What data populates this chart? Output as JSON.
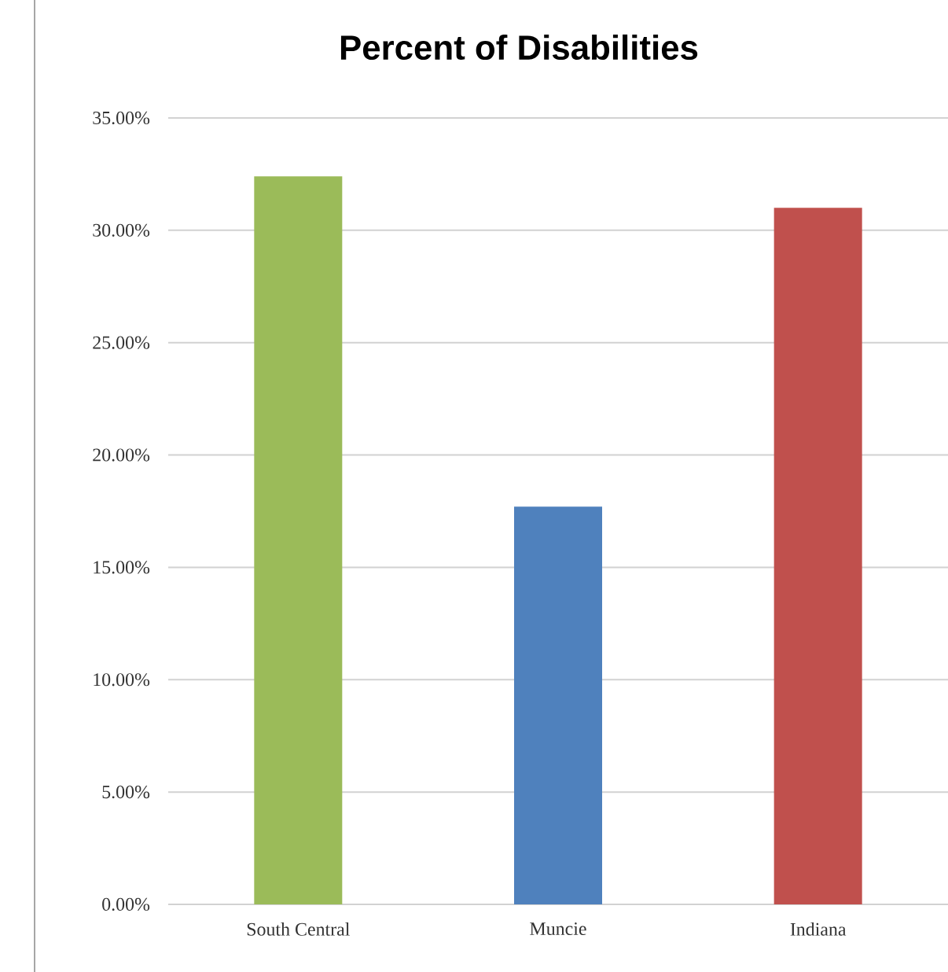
{
  "chart_data": {
    "type": "bar",
    "title": "Percent of Disabilities",
    "categories": [
      "South Central",
      "Muncie",
      "Indiana"
    ],
    "values": [
      32.4,
      17.7,
      31.0
    ],
    "colors": [
      "#9bbb59",
      "#4f81bd",
      "#c0504d"
    ],
    "ylim": [
      0,
      35
    ],
    "yticks": [
      {
        "value": 0,
        "label": "0.00%"
      },
      {
        "value": 5,
        "label": "5.00%"
      },
      {
        "value": 10,
        "label": "10.00%"
      },
      {
        "value": 15,
        "label": "15.00%"
      },
      {
        "value": 20,
        "label": "20.00%"
      },
      {
        "value": 25,
        "label": "25.00%"
      },
      {
        "value": 30,
        "label": "30.00%"
      },
      {
        "value": 35,
        "label": "35.00%"
      }
    ],
    "grid": "y"
  }
}
